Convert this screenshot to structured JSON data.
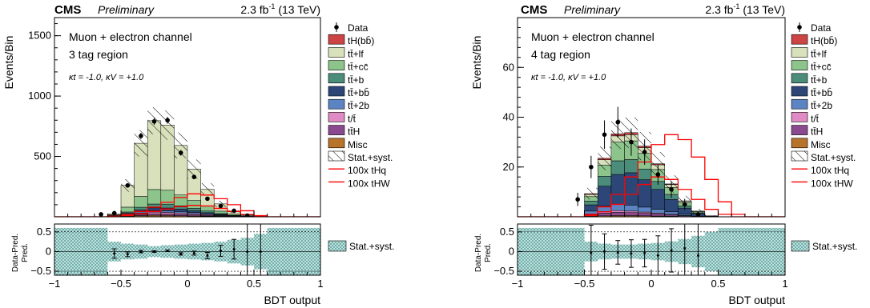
{
  "chart_data": [
    {
      "type": "bar",
      "stacked": true,
      "header": {
        "experiment": "CMS",
        "status": "Preliminary",
        "lumi": "2.3 fb",
        "lumi_sup": "-1",
        "energy": " (13 TeV)"
      },
      "annotations": {
        "channel": "Muon + electron channel",
        "region": "3 tag region",
        "couplings": "κt = -1.0, κV = +1.0"
      },
      "ylabel": "Events/Bin",
      "xlabel": "BDT output",
      "ratio_ylabel_num": "Data-Pred.",
      "ratio_ylabel_den": "Pred.",
      "xlim": [
        -1,
        1
      ],
      "ylim": [
        0,
        1650
      ],
      "yticks": [
        500,
        1000,
        1500
      ],
      "xticks": [
        -1,
        -0.5,
        0,
        0.5,
        1
      ],
      "xtick_labels": [
        "−1",
        "−0.5",
        "0",
        "0.5",
        "1"
      ],
      "ratio_ylim": [
        -0.6,
        0.7
      ],
      "ratio_yticks": [
        -0.5,
        0,
        0.5
      ],
      "ratio_ytick_labels": [
        "−0.5",
        "0",
        "0.5"
      ],
      "bin_edges": [
        -1,
        -0.9,
        -0.8,
        -0.7,
        -0.6,
        -0.5,
        -0.4,
        -0.3,
        -0.2,
        -0.1,
        0,
        0.1,
        0.2,
        0.3,
        0.4,
        0.5,
        0.6,
        0.7,
        0.8,
        0.9,
        1
      ],
      "stack": [
        {
          "name": "Misc",
          "color": "#b8732b",
          "values": [
            0,
            0,
            0,
            0,
            2,
            6,
            10,
            12,
            11,
            9,
            7,
            5,
            3,
            2,
            1,
            0,
            0,
            0,
            0,
            0
          ]
        },
        {
          "name": "tt̄H",
          "color": "#8b4a8f",
          "values": [
            0,
            0,
            0,
            0,
            2,
            5,
            9,
            12,
            12,
            11,
            9,
            6,
            4,
            2,
            1,
            0,
            0,
            0,
            0,
            0
          ]
        },
        {
          "name": "t/t̄",
          "color": "#e08bc4",
          "values": [
            0,
            0,
            0,
            0,
            2,
            6,
            12,
            15,
            14,
            12,
            10,
            7,
            4,
            2,
            1,
            0,
            0,
            0,
            0,
            0
          ]
        },
        {
          "name": "tt̄+2b",
          "color": "#5c83c2",
          "values": [
            0,
            0,
            0,
            0,
            1,
            5,
            10,
            13,
            13,
            12,
            9,
            6,
            4,
            2,
            1,
            0,
            0,
            0,
            0,
            0
          ]
        },
        {
          "name": "tt̄+bb̄",
          "color": "#2c4777",
          "values": [
            0,
            0,
            0,
            0,
            2,
            8,
            16,
            22,
            23,
            20,
            15,
            10,
            5,
            2,
            1,
            0,
            0,
            0,
            0,
            0
          ]
        },
        {
          "name": "tt̄+b",
          "color": "#4b8c7a",
          "values": [
            0,
            0,
            0,
            0,
            2,
            10,
            22,
            32,
            32,
            27,
            20,
            14,
            7,
            3,
            1,
            0,
            0,
            0,
            0,
            0
          ]
        },
        {
          "name": "tt̄+cc̄",
          "color": "#8cc48c",
          "values": [
            0,
            0,
            0,
            0,
            6,
            40,
            90,
            120,
            115,
            90,
            65,
            40,
            20,
            9,
            3,
            0,
            0,
            0,
            0,
            0
          ]
        },
        {
          "name": "tt̄+lf",
          "color": "#d8e0bc",
          "values": [
            0,
            0,
            0,
            0,
            5,
            180,
            440,
            570,
            540,
            410,
            260,
            140,
            60,
            20,
            7,
            0,
            0,
            0,
            0,
            0
          ]
        },
        {
          "name": "tH(bb̄)",
          "color": "#cc4444",
          "values": [
            0,
            0,
            0,
            0,
            0,
            0,
            0,
            0,
            0,
            0,
            0,
            0,
            0,
            0,
            0,
            0,
            0,
            0,
            0,
            0
          ]
        }
      ],
      "signal_lines": [
        {
          "name": "100x tHq",
          "color": "#ff0000",
          "values": [
            0,
            0,
            0,
            0,
            5,
            20,
            45,
            80,
            120,
            160,
            190,
            180,
            150,
            100,
            50,
            10,
            0,
            0,
            0,
            0
          ]
        },
        {
          "name": "100x tHW",
          "color": "#ff0000",
          "values": [
            0,
            0,
            0,
            0,
            2,
            10,
            25,
            45,
            65,
            85,
            95,
            90,
            70,
            45,
            20,
            5,
            0,
            0,
            0,
            0
          ]
        }
      ],
      "uncert_rel": [
        0.6,
        0.6,
        0.6,
        0.6,
        0.25,
        0.2,
        0.18,
        0.14,
        0.16,
        0.18,
        0.2,
        0.22,
        0.25,
        0.3,
        0.35,
        0.45,
        0.6,
        0.6,
        0.6,
        0.6
      ],
      "data": {
        "x": [
          -0.65,
          -0.55,
          -0.45,
          -0.35,
          -0.25,
          -0.15,
          -0.05,
          0.05,
          0.15,
          0.25,
          0.35,
          0.45
        ],
        "y": [
          20,
          30,
          260,
          670,
          790,
          800,
          530,
          330,
          150,
          90,
          50,
          10
        ]
      },
      "ratio_points": {
        "x": [
          -0.55,
          -0.45,
          -0.35,
          -0.25,
          -0.15,
          -0.05,
          0.05,
          0.15,
          0.25,
          0.35,
          0.45,
          0.55
        ],
        "y": [
          -0.05,
          -0.07,
          0.0,
          0.0,
          0.02,
          -0.06,
          -0.04,
          -0.1,
          0.02,
          0.06,
          0.0,
          0.0
        ],
        "err": [
          0.12,
          0.06,
          0.03,
          0.02,
          0.02,
          0.03,
          0.05,
          0.08,
          0.14,
          0.25,
          0.7,
          1.0
        ]
      },
      "legend": {
        "data": "Data",
        "stat": "Stat.+syst.",
        "ratio_stat": "Stat.+syst."
      },
      "hatch_color": "#3b8f8a"
    },
    {
      "type": "bar",
      "stacked": true,
      "header": {
        "experiment": "CMS",
        "status": "Preliminary",
        "lumi": "2.3 fb",
        "lumi_sup": "-1",
        "energy": " (13 TeV)"
      },
      "annotations": {
        "channel": "Muon + electron channel",
        "region": "4 tag region",
        "couplings": "κt = -1.0, κV = +1.0"
      },
      "ylabel": "Events/Bin",
      "xlabel": "BDT output",
      "ratio_ylabel_num": "Data-Pred.",
      "ratio_ylabel_den": "Pred.",
      "xlim": [
        -1,
        1
      ],
      "ylim": [
        0,
        80
      ],
      "yticks": [
        20,
        40,
        60
      ],
      "xticks": [
        -1,
        -0.5,
        0,
        0.5,
        1
      ],
      "xtick_labels": [
        "−1",
        "−0.5",
        "0",
        "0.5",
        "1"
      ],
      "ratio_ylim": [
        -0.6,
        0.7
      ],
      "ratio_yticks": [
        -0.5,
        0,
        0.5
      ],
      "ratio_ytick_labels": [
        "−0.5",
        "0",
        "0.5"
      ],
      "bin_edges": [
        -1,
        -0.9,
        -0.8,
        -0.7,
        -0.6,
        -0.5,
        -0.4,
        -0.3,
        -0.2,
        -0.1,
        0,
        0.1,
        0.2,
        0.3,
        0.4,
        0.5,
        0.6,
        0.7,
        0.8,
        0.9,
        1
      ],
      "stack": [
        {
          "name": "Misc",
          "color": "#b8732b",
          "values": [
            0,
            0,
            0,
            0,
            0,
            0.2,
            0.4,
            0.5,
            0.5,
            0.4,
            0.3,
            0.2,
            0.1,
            0,
            0,
            0,
            0,
            0,
            0,
            0
          ]
        },
        {
          "name": "tt̄H",
          "color": "#8b4a8f",
          "values": [
            0,
            0,
            0,
            0,
            0,
            0.6,
            1.1,
            1.3,
            1.2,
            1.0,
            0.8,
            0.5,
            0.3,
            0.1,
            0,
            0,
            0,
            0,
            0,
            0
          ]
        },
        {
          "name": "t/t̄",
          "color": "#e08bc4",
          "values": [
            0,
            0,
            0,
            0,
            0,
            0.3,
            0.6,
            0.7,
            0.6,
            0.5,
            0.4,
            0.3,
            0.1,
            0,
            0,
            0,
            0,
            0,
            0,
            0
          ]
        },
        {
          "name": "tt̄+2b",
          "color": "#5c83c2",
          "values": [
            0,
            0,
            0,
            0,
            0,
            1.2,
            2.2,
            2.5,
            2.4,
            2.0,
            1.5,
            1.0,
            0.5,
            0.2,
            0,
            0,
            0,
            0,
            0,
            0
          ]
        },
        {
          "name": "tt̄+bb̄",
          "color": "#2c4777",
          "values": [
            0,
            0,
            0,
            0,
            0,
            2.5,
            8,
            12,
            13,
            11,
            8,
            5,
            2.5,
            1,
            0.2,
            0,
            0,
            0,
            0,
            0
          ]
        },
        {
          "name": "tt̄+b",
          "color": "#4b8c7a",
          "values": [
            0,
            0,
            0,
            0,
            0,
            1.5,
            4,
            5.5,
            5.3,
            4.3,
            3.2,
            2,
            0.9,
            0.3,
            0.1,
            0,
            0,
            0,
            0,
            0
          ]
        },
        {
          "name": "tt̄+cc̄",
          "color": "#8cc48c",
          "values": [
            0,
            0,
            0,
            0,
            0,
            1.8,
            4.5,
            7.5,
            7.5,
            6.3,
            4.8,
            2.8,
            1.3,
            0.5,
            0.1,
            0,
            0,
            0,
            0,
            0
          ]
        },
        {
          "name": "tt̄+lf",
          "color": "#d8e0bc",
          "values": [
            0,
            0,
            0,
            0,
            0,
            0.9,
            2.1,
            2.5,
            2.5,
            2.3,
            1.9,
            1.2,
            0.6,
            0.2,
            0,
            0,
            0,
            0,
            0,
            0
          ]
        },
        {
          "name": "tH(bb̄)",
          "color": "#cc4444",
          "values": [
            0,
            0,
            0,
            0,
            0,
            0.3,
            0.6,
            0.8,
            0.8,
            0.6,
            0.4,
            0.2,
            0.1,
            0,
            0,
            0,
            0,
            0,
            0,
            0
          ]
        }
      ],
      "signal_lines": [
        {
          "name": "100x tHq",
          "color": "#ff0000",
          "values": [
            0,
            0,
            0,
            0,
            0,
            1,
            4,
            9,
            16,
            22,
            29,
            33,
            31,
            24,
            15,
            6,
            1,
            0,
            0,
            0
          ]
        },
        {
          "name": "100x tHW",
          "color": "#ff0000",
          "values": [
            0,
            0,
            0,
            0,
            0,
            0.5,
            2,
            5,
            9,
            13,
            16,
            15,
            11,
            7,
            3,
            1,
            0,
            0,
            0,
            0
          ]
        }
      ],
      "uncert_rel": [
        0.6,
        0.6,
        0.6,
        0.6,
        0.6,
        0.25,
        0.2,
        0.18,
        0.18,
        0.2,
        0.22,
        0.26,
        0.32,
        0.4,
        0.5,
        0.6,
        0.6,
        0.6,
        0.6,
        0.6
      ],
      "data": {
        "x": [
          -0.55,
          -0.45,
          -0.35,
          -0.25,
          -0.15,
          -0.05,
          0.05,
          0.15,
          0.25,
          0.35
        ],
        "y": [
          7,
          20,
          33,
          38,
          30,
          26,
          17,
          11,
          5,
          1
        ]
      },
      "ratio_points": {
        "x": [
          -0.45,
          -0.35,
          -0.25,
          -0.15,
          -0.05,
          0.05,
          0.15,
          0.25,
          0.35
        ],
        "y": [
          -0.03,
          0.0,
          -0.02,
          -0.05,
          -0.04,
          -0.1,
          0.03,
          0.08,
          -0.1
        ],
        "err": [
          0.7,
          0.45,
          0.3,
          0.35,
          0.35,
          0.5,
          0.55,
          0.7,
          1.0
        ]
      },
      "legend": {
        "data": "Data",
        "stat": "Stat.+syst.",
        "ratio_stat": "Stat.+syst."
      },
      "hatch_color": "#3b8f8a"
    }
  ]
}
